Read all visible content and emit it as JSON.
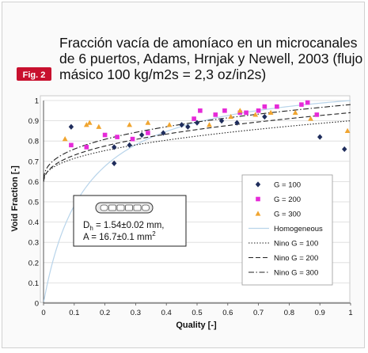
{
  "figure_tag": "Fig. 2",
  "colors": {
    "page_bg": "#fafafa",
    "plot_bg": "#ffffff",
    "fig_tag_bg": "#c8102e",
    "g100": "#1f2d5c",
    "g200": "#e62ad8",
    "g300": "#f0a530",
    "homogeneous": "#b8d4ea",
    "nino": "#222222",
    "grid": "#d9d9d9"
  },
  "chart_data": {
    "type": "scatter",
    "title_lines": [
      "Fracción vacía de amoníaco en un microcanales",
      "de 6 puertos, Adams, Hrnjak y Newell, 2003 (flujo",
      "másico 100 kg/m2s = 2,3 oz/in2s)"
    ],
    "xlabel": "Quality [-]",
    "ylabel": "Void Fraction [-]",
    "xlim": [
      0,
      1
    ],
    "ylim": [
      0,
      1
    ],
    "x_ticks": [
      "0",
      "0.1",
      "0.2",
      "0.3",
      "0.4",
      "0.5",
      "0.6",
      "0.7",
      "0.8",
      "0.9",
      "1"
    ],
    "y_ticks": [
      "0",
      "0.1",
      "0.2",
      "0.3",
      "0.4",
      "0.5",
      "0.6",
      "0.7",
      "0.8",
      "0.9",
      "1"
    ],
    "grid": "horizontal",
    "legend_position": "right",
    "inset": {
      "line1": "D",
      "line1_sub": "h",
      "line1_rest": " = 1.54±0.02 mm,",
      "line2": "A = 16.7±0.1 mm",
      "line2_sup": "2"
    },
    "series": [
      {
        "name": "G = 100",
        "marker": "diamond",
        "points": [
          [
            0.09,
            0.87
          ],
          [
            0.23,
            0.69
          ],
          [
            0.23,
            0.77
          ],
          [
            0.28,
            0.78
          ],
          [
            0.32,
            0.83
          ],
          [
            0.39,
            0.84
          ],
          [
            0.45,
            0.88
          ],
          [
            0.47,
            0.87
          ],
          [
            0.5,
            0.89
          ],
          [
            0.58,
            0.9
          ],
          [
            0.63,
            0.89
          ],
          [
            0.72,
            0.92
          ],
          [
            0.9,
            0.82
          ],
          [
            0.98,
            0.76
          ]
        ]
      },
      {
        "name": "G = 200",
        "marker": "square",
        "points": [
          [
            0.09,
            0.78
          ],
          [
            0.14,
            0.77
          ],
          [
            0.2,
            0.83
          ],
          [
            0.24,
            0.82
          ],
          [
            0.29,
            0.81
          ],
          [
            0.34,
            0.84
          ],
          [
            0.49,
            0.91
          ],
          [
            0.51,
            0.95
          ],
          [
            0.56,
            0.93
          ],
          [
            0.59,
            0.95
          ],
          [
            0.64,
            0.94
          ],
          [
            0.66,
            0.94
          ],
          [
            0.7,
            0.95
          ],
          [
            0.72,
            0.97
          ],
          [
            0.76,
            0.97
          ],
          [
            0.84,
            0.98
          ],
          [
            0.86,
            0.99
          ],
          [
            0.89,
            0.93
          ]
        ]
      },
      {
        "name": "G = 300",
        "marker": "triangle",
        "points": [
          [
            0.07,
            0.81
          ],
          [
            0.14,
            0.88
          ],
          [
            0.15,
            0.89
          ],
          [
            0.18,
            0.87
          ],
          [
            0.28,
            0.88
          ],
          [
            0.34,
            0.89
          ],
          [
            0.41,
            0.88
          ],
          [
            0.54,
            0.88
          ],
          [
            0.61,
            0.92
          ],
          [
            0.64,
            0.95
          ],
          [
            0.69,
            0.93
          ],
          [
            0.74,
            0.94
          ],
          [
            0.82,
            0.94
          ],
          [
            0.87,
            0.91
          ],
          [
            0.99,
            0.85
          ]
        ]
      },
      {
        "name": "Homogeneous",
        "line": "solid-light"
      },
      {
        "name": "Nino G = 100",
        "line": "dotted"
      },
      {
        "name": "Nino G = 200",
        "line": "dashed"
      },
      {
        "name": "Nino G = 300",
        "line": "dashdot"
      }
    ]
  }
}
